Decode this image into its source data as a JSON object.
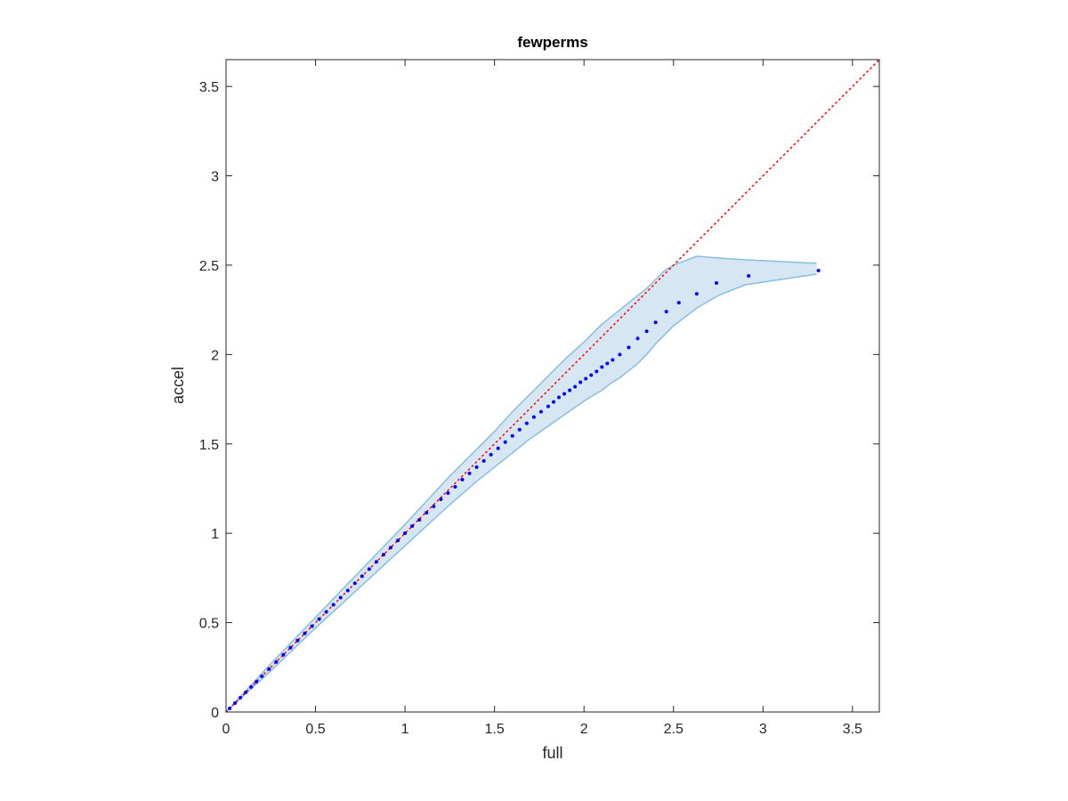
{
  "chart_data": {
    "type": "scatter",
    "title": "fewperms",
    "xlabel": "full",
    "ylabel": "accel",
    "xlim": [
      0,
      3.65
    ],
    "ylim": [
      0,
      3.65
    ],
    "xticks": [
      "0",
      "0.5",
      "1",
      "1.5",
      "2",
      "2.5",
      "3",
      "3.5"
    ],
    "yticks": [
      "0",
      "0.5",
      "1",
      "1.5",
      "2",
      "2.5",
      "3",
      "3.5"
    ],
    "grid": false,
    "box": true,
    "colors": {
      "points": "#0000ff",
      "reference_line": "#ff0000",
      "band_fill": "#d6e6f3",
      "band_edge": "#88bde0",
      "axes": "#262626"
    },
    "reference_line": {
      "style": "dotted",
      "x": [
        0,
        3.65
      ],
      "y": [
        0,
        3.65
      ]
    },
    "confidence_band": {
      "x": [
        0,
        0.25,
        0.5,
        0.75,
        1.0,
        1.25,
        1.4,
        1.5,
        1.6,
        1.7,
        1.8,
        1.9,
        2.0,
        2.05,
        2.1,
        2.15,
        2.2,
        2.25,
        2.3,
        2.35,
        2.4,
        2.45,
        2.5,
        2.63,
        2.75,
        2.9,
        3.3
      ],
      "upper": [
        0,
        0.27,
        0.53,
        0.79,
        1.05,
        1.32,
        1.47,
        1.57,
        1.68,
        1.78,
        1.88,
        1.98,
        2.07,
        2.12,
        2.17,
        2.21,
        2.25,
        2.29,
        2.33,
        2.37,
        2.42,
        2.47,
        2.5,
        2.55,
        2.54,
        2.53,
        2.51
      ],
      "lower": [
        0,
        0.23,
        0.47,
        0.7,
        0.93,
        1.16,
        1.29,
        1.37,
        1.45,
        1.53,
        1.6,
        1.67,
        1.74,
        1.77,
        1.8,
        1.84,
        1.87,
        1.91,
        1.95,
        2.0,
        2.06,
        2.11,
        2.16,
        2.26,
        2.33,
        2.39,
        2.45
      ]
    },
    "series": [
      {
        "x": [
          0.02,
          0.05,
          0.08,
          0.11,
          0.14,
          0.17,
          0.2,
          0.24,
          0.28,
          0.32,
          0.36,
          0.4,
          0.44,
          0.48,
          0.52,
          0.56,
          0.6,
          0.64,
          0.68,
          0.72,
          0.76,
          0.8,
          0.84,
          0.88,
          0.92,
          0.96,
          1.0,
          1.04,
          1.08,
          1.12,
          1.16,
          1.2,
          1.24,
          1.28,
          1.32,
          1.36,
          1.4,
          1.44,
          1.48,
          1.52,
          1.56,
          1.6,
          1.64,
          1.68,
          1.72,
          1.76,
          1.8,
          1.83,
          1.86,
          1.89,
          1.92,
          1.95,
          1.98,
          2.01,
          2.04,
          2.07,
          2.1,
          2.13,
          2.16,
          2.2,
          2.25,
          2.3,
          2.35,
          2.4,
          2.46,
          2.53,
          2.63,
          2.74,
          2.92,
          3.31
        ],
        "y": [
          0.02,
          0.05,
          0.08,
          0.11,
          0.14,
          0.17,
          0.2,
          0.24,
          0.28,
          0.32,
          0.36,
          0.4,
          0.44,
          0.48,
          0.52,
          0.56,
          0.6,
          0.64,
          0.68,
          0.72,
          0.76,
          0.8,
          0.84,
          0.88,
          0.92,
          0.96,
          1.0,
          1.04,
          1.075,
          1.115,
          1.15,
          1.19,
          1.225,
          1.26,
          1.3,
          1.335,
          1.37,
          1.405,
          1.44,
          1.475,
          1.51,
          1.545,
          1.58,
          1.615,
          1.65,
          1.68,
          1.71,
          1.735,
          1.76,
          1.78,
          1.8,
          1.82,
          1.845,
          1.865,
          1.885,
          1.905,
          1.93,
          1.95,
          1.97,
          2.0,
          2.04,
          2.09,
          2.13,
          2.18,
          2.24,
          2.29,
          2.34,
          2.4,
          2.44,
          2.47
        ]
      }
    ]
  }
}
